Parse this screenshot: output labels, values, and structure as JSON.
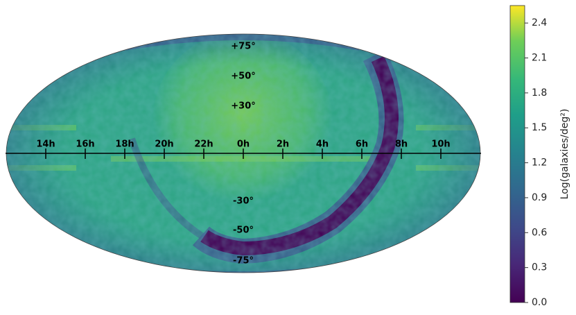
{
  "map": {
    "ra_labels": [
      "14h",
      "16h",
      "18h",
      "20h",
      "22h",
      "0h",
      "2h",
      "4h",
      "6h",
      "8h",
      "10h"
    ],
    "dec_labels": [
      "+75°",
      "+50°",
      "+30°",
      "-30°",
      "-50°",
      "-75°"
    ]
  },
  "colorbar": {
    "label": "Log(galaxies/deg²)",
    "lim": [
      0,
      2.55
    ],
    "ticks": [
      {
        "value": 0,
        "label": "0.0"
      },
      0.3,
      0.6,
      0.9,
      1.2,
      1.5,
      1.8,
      2.1,
      2.4
    ]
  }
}
